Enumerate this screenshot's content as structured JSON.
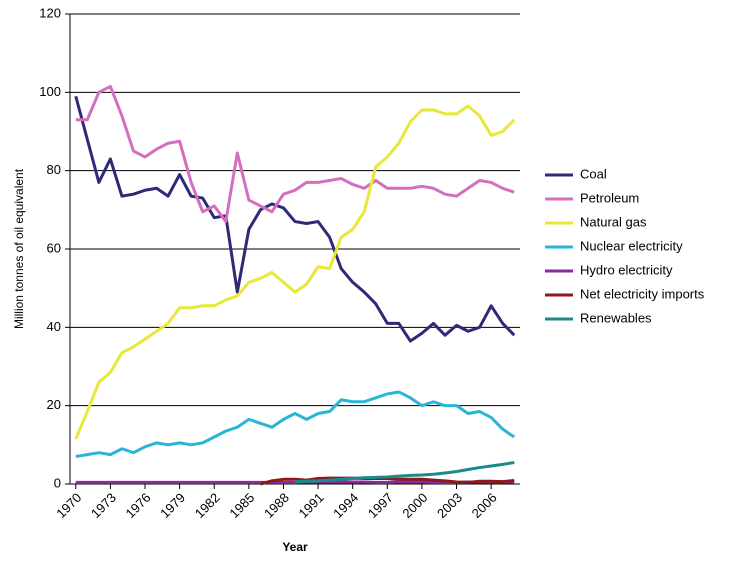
{
  "chart_data": {
    "type": "line",
    "x_label": "Year",
    "y_label": "Million tonnes of oil equivalent",
    "x": [
      1970,
      1971,
      1972,
      1973,
      1974,
      1975,
      1976,
      1977,
      1978,
      1979,
      1980,
      1981,
      1982,
      1983,
      1984,
      1985,
      1986,
      1987,
      1988,
      1989,
      1990,
      1991,
      1992,
      1993,
      1994,
      1995,
      1996,
      1997,
      1998,
      1999,
      2000,
      2001,
      2002,
      2003,
      2004,
      2005,
      2006,
      2007,
      2008
    ],
    "xlim": [
      1969.5,
      2008.5
    ],
    "xticks": [
      1970,
      1973,
      1976,
      1979,
      1982,
      1985,
      1988,
      1991,
      1994,
      1997,
      2000,
      2003,
      2006
    ],
    "ylim": [
      0,
      120
    ],
    "yticks": [
      0,
      20,
      40,
      60,
      80,
      100,
      120
    ],
    "grid": true,
    "legend": "right",
    "series": [
      {
        "name": "Coal",
        "color": "#2e2a78",
        "values": [
          99,
          88,
          77,
          83,
          73.5,
          74,
          75,
          75.5,
          73.5,
          79,
          73.5,
          73,
          68,
          68.5,
          49,
          65,
          70,
          71.5,
          70.5,
          67,
          66.5,
          67,
          63,
          55,
          51.5,
          49,
          46,
          41,
          41,
          36.5,
          38.5,
          41,
          38,
          40.5,
          39,
          40,
          45.5,
          41,
          38
        ]
      },
      {
        "name": "Petroleum",
        "color": "#d46fbd",
        "values": [
          93,
          93,
          100,
          101.5,
          94,
          85,
          83.5,
          85.5,
          87,
          87.5,
          77,
          69.5,
          71,
          67,
          84.5,
          72.5,
          71,
          69.5,
          74,
          75,
          77,
          77,
          77.5,
          78,
          76.5,
          75.5,
          77.5,
          75.5,
          75.5,
          75.5,
          76,
          75.5,
          74,
          73.5,
          75.5,
          77.5,
          77,
          75.5,
          74.5
        ]
      },
      {
        "name": "Natural gas",
        "color": "#e8e838",
        "values": [
          11.5,
          18.5,
          26,
          28.5,
          33.5,
          35,
          37,
          39,
          41,
          45,
          45,
          45.5,
          45.5,
          47,
          48,
          51.5,
          52.5,
          54,
          51.5,
          49,
          51,
          55.5,
          55,
          63,
          65,
          69.5,
          81,
          83.5,
          87,
          92.5,
          95.5,
          95.5,
          94.5,
          94.5,
          96.5,
          94,
          89,
          90,
          93
        ]
      },
      {
        "name": "Nuclear electricity",
        "color": "#2ab4d6",
        "values": [
          7,
          7.5,
          8,
          7.5,
          9,
          8,
          9.5,
          10.5,
          10,
          10.5,
          10,
          10.5,
          12,
          13.5,
          14.5,
          16.5,
          15.5,
          14.5,
          16.5,
          18,
          16.5,
          18,
          18.5,
          21.5,
          21,
          21,
          22,
          23,
          23.5,
          22,
          20,
          21,
          20,
          20,
          18,
          18.5,
          17,
          14,
          12
        ]
      },
      {
        "name": "Hydro electricity",
        "color": "#8b2a9e",
        "values": [
          0.4,
          0.4,
          0.4,
          0.4,
          0.4,
          0.4,
          0.4,
          0.4,
          0.4,
          0.4,
          0.4,
          0.4,
          0.4,
          0.4,
          0.4,
          0.4,
          0.4,
          0.4,
          0.4,
          0.4,
          0.5,
          0.5,
          0.5,
          0.5,
          0.5,
          0.5,
          0.4,
          0.4,
          0.5,
          0.5,
          0.5,
          0.4,
          0.4,
          0.4,
          0.5,
          0.5,
          0.5,
          0.5,
          0.5
        ]
      },
      {
        "name": "Net electricity imports",
        "color": "#8b1a1a",
        "values": [
          null,
          null,
          null,
          null,
          null,
          null,
          null,
          null,
          null,
          null,
          null,
          null,
          null,
          null,
          null,
          null,
          0,
          0.8,
          1.2,
          1.2,
          1,
          1.4,
          1.5,
          1.5,
          1.5,
          1.4,
          1.4,
          1.4,
          1.2,
          1.2,
          1.2,
          1,
          0.8,
          0.5,
          0.4,
          0.7,
          0.7,
          0.6,
          0.9
        ]
      },
      {
        "name": "Renewables",
        "color": "#1b8a8a",
        "values": [
          null,
          null,
          null,
          null,
          null,
          null,
          null,
          null,
          null,
          null,
          null,
          null,
          null,
          null,
          null,
          null,
          null,
          null,
          null,
          0.6,
          0.7,
          0.8,
          1,
          1.2,
          1.4,
          1.6,
          1.7,
          1.8,
          2,
          2.2,
          2.3,
          2.5,
          2.8,
          3.2,
          3.7,
          4.2,
          4.6,
          5,
          5.5
        ]
      }
    ]
  }
}
